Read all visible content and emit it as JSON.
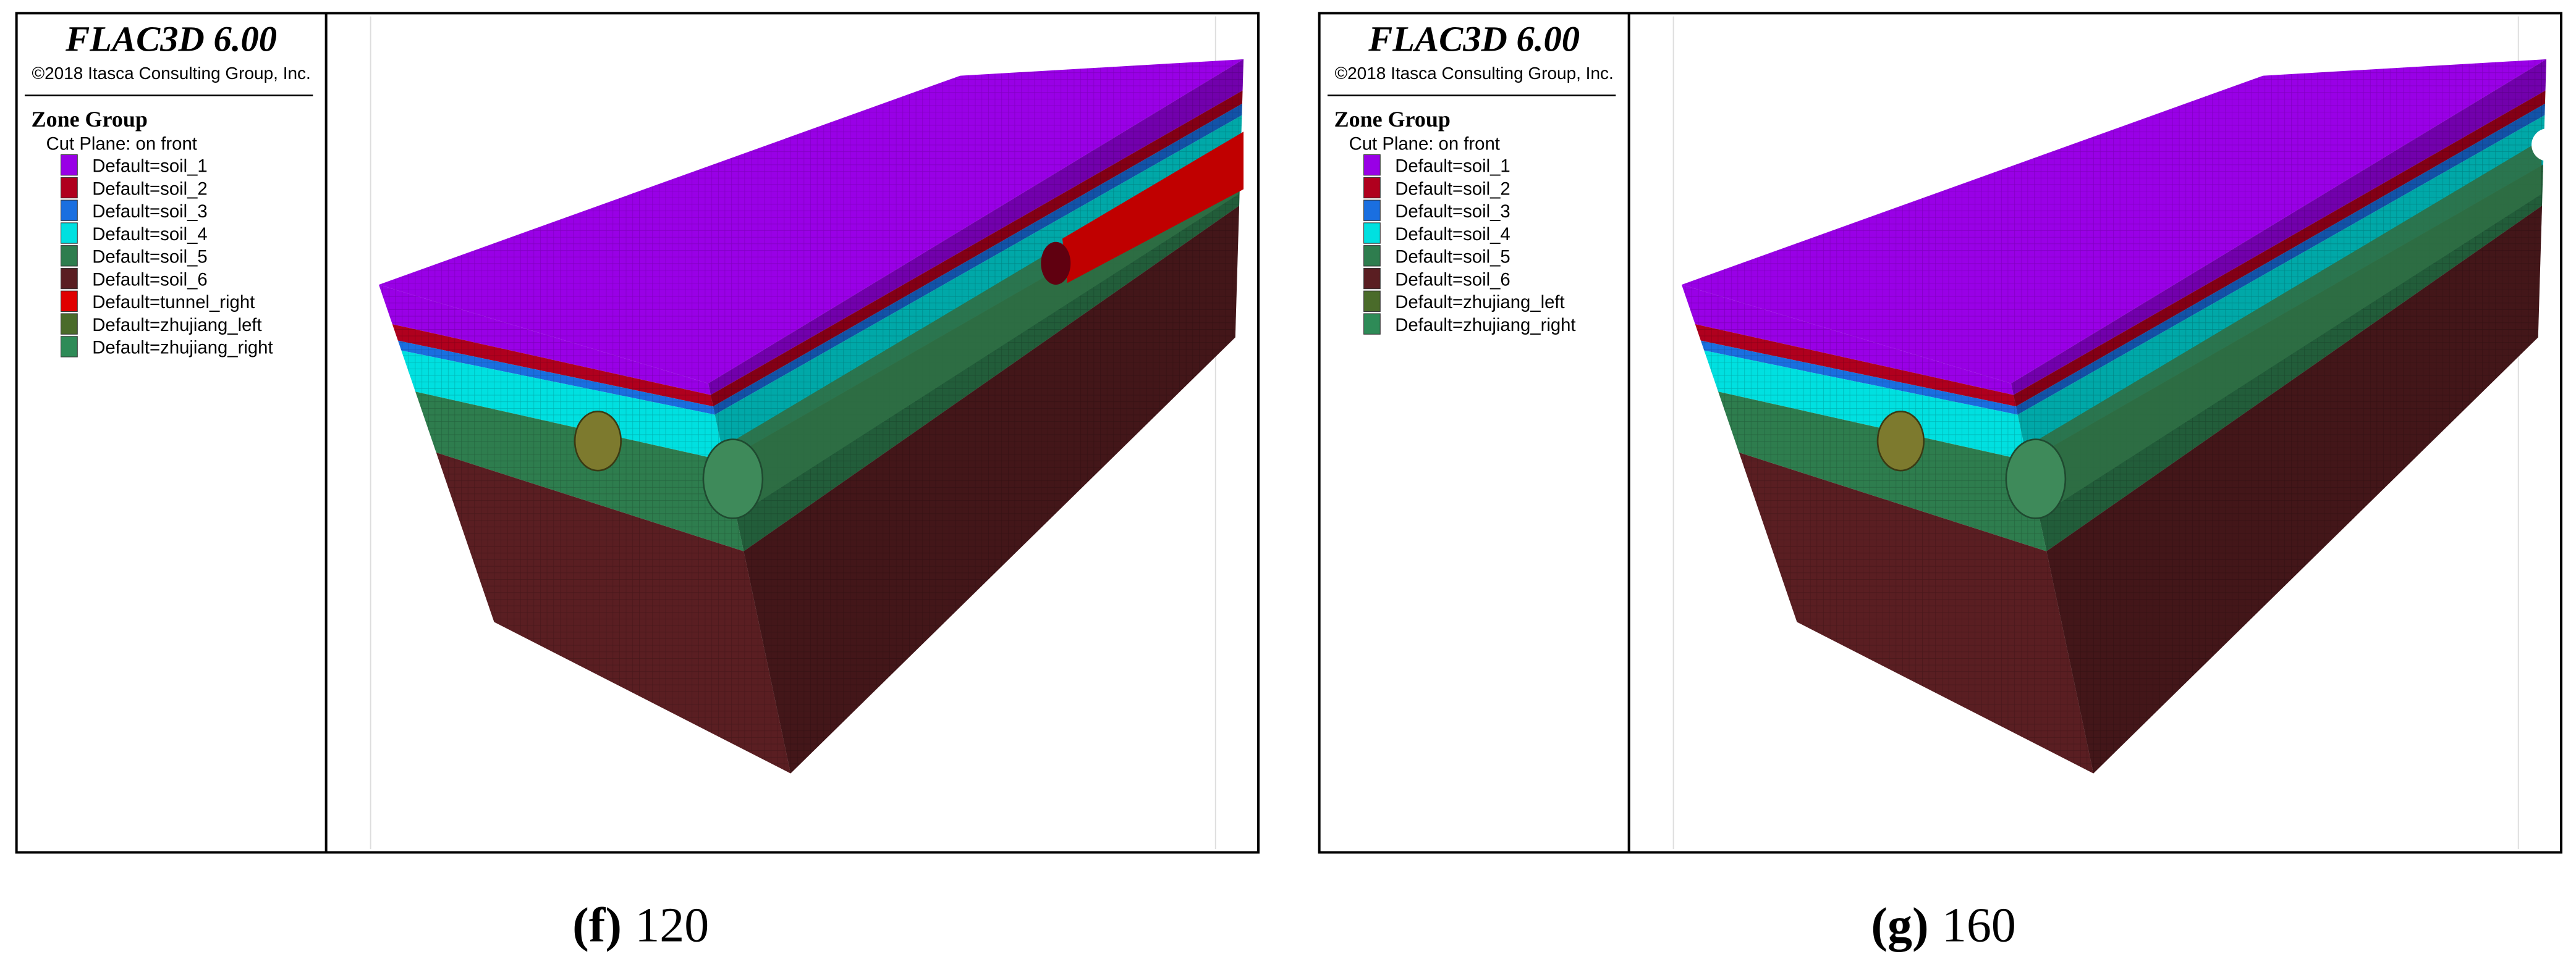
{
  "panels": [
    {
      "header": {
        "title": "FLAC3D 6.00",
        "copyright": "©2018 Itasca Consulting Group, Inc."
      },
      "legend": {
        "title": "Zone Group",
        "subtitle": "Cut Plane: on front",
        "items": [
          {
            "label": "Default=soil_1",
            "color": "#9900e6"
          },
          {
            "label": "Default=soil_2",
            "color": "#b0001e"
          },
          {
            "label": "Default=soil_3",
            "color": "#1a6fe0"
          },
          {
            "label": "Default=soil_4",
            "color": "#00e0e0"
          },
          {
            "label": "Default=soil_5",
            "color": "#2e7d4e"
          },
          {
            "label": "Default=soil_6",
            "color": "#5a1e22"
          },
          {
            "label": "Default=tunnel_right",
            "color": "#e00000"
          },
          {
            "label": "Default=zhujiang_left",
            "color": "#4a6b2a"
          },
          {
            "label": "Default=zhujiang_right",
            "color": "#2e8b57"
          }
        ]
      },
      "caption": {
        "label": "(f)",
        "value": "120"
      }
    },
    {
      "header": {
        "title": "FLAC3D 6.00",
        "copyright": "©2018 Itasca Consulting Group, Inc."
      },
      "legend": {
        "title": "Zone Group",
        "subtitle": "Cut Plane: on front",
        "items": [
          {
            "label": "Default=soil_1",
            "color": "#9900e6"
          },
          {
            "label": "Default=soil_2",
            "color": "#b0001e"
          },
          {
            "label": "Default=soil_3",
            "color": "#1a6fe0"
          },
          {
            "label": "Default=soil_4",
            "color": "#00e0e0"
          },
          {
            "label": "Default=soil_5",
            "color": "#2e7d4e"
          },
          {
            "label": "Default=soil_6",
            "color": "#5a1e22"
          },
          {
            "label": "Default=zhujiang_left",
            "color": "#4a6b2a"
          },
          {
            "label": "Default=zhujiang_right",
            "color": "#2e8b57"
          }
        ]
      },
      "caption": {
        "label": "(g)",
        "value": "160"
      }
    }
  ]
}
